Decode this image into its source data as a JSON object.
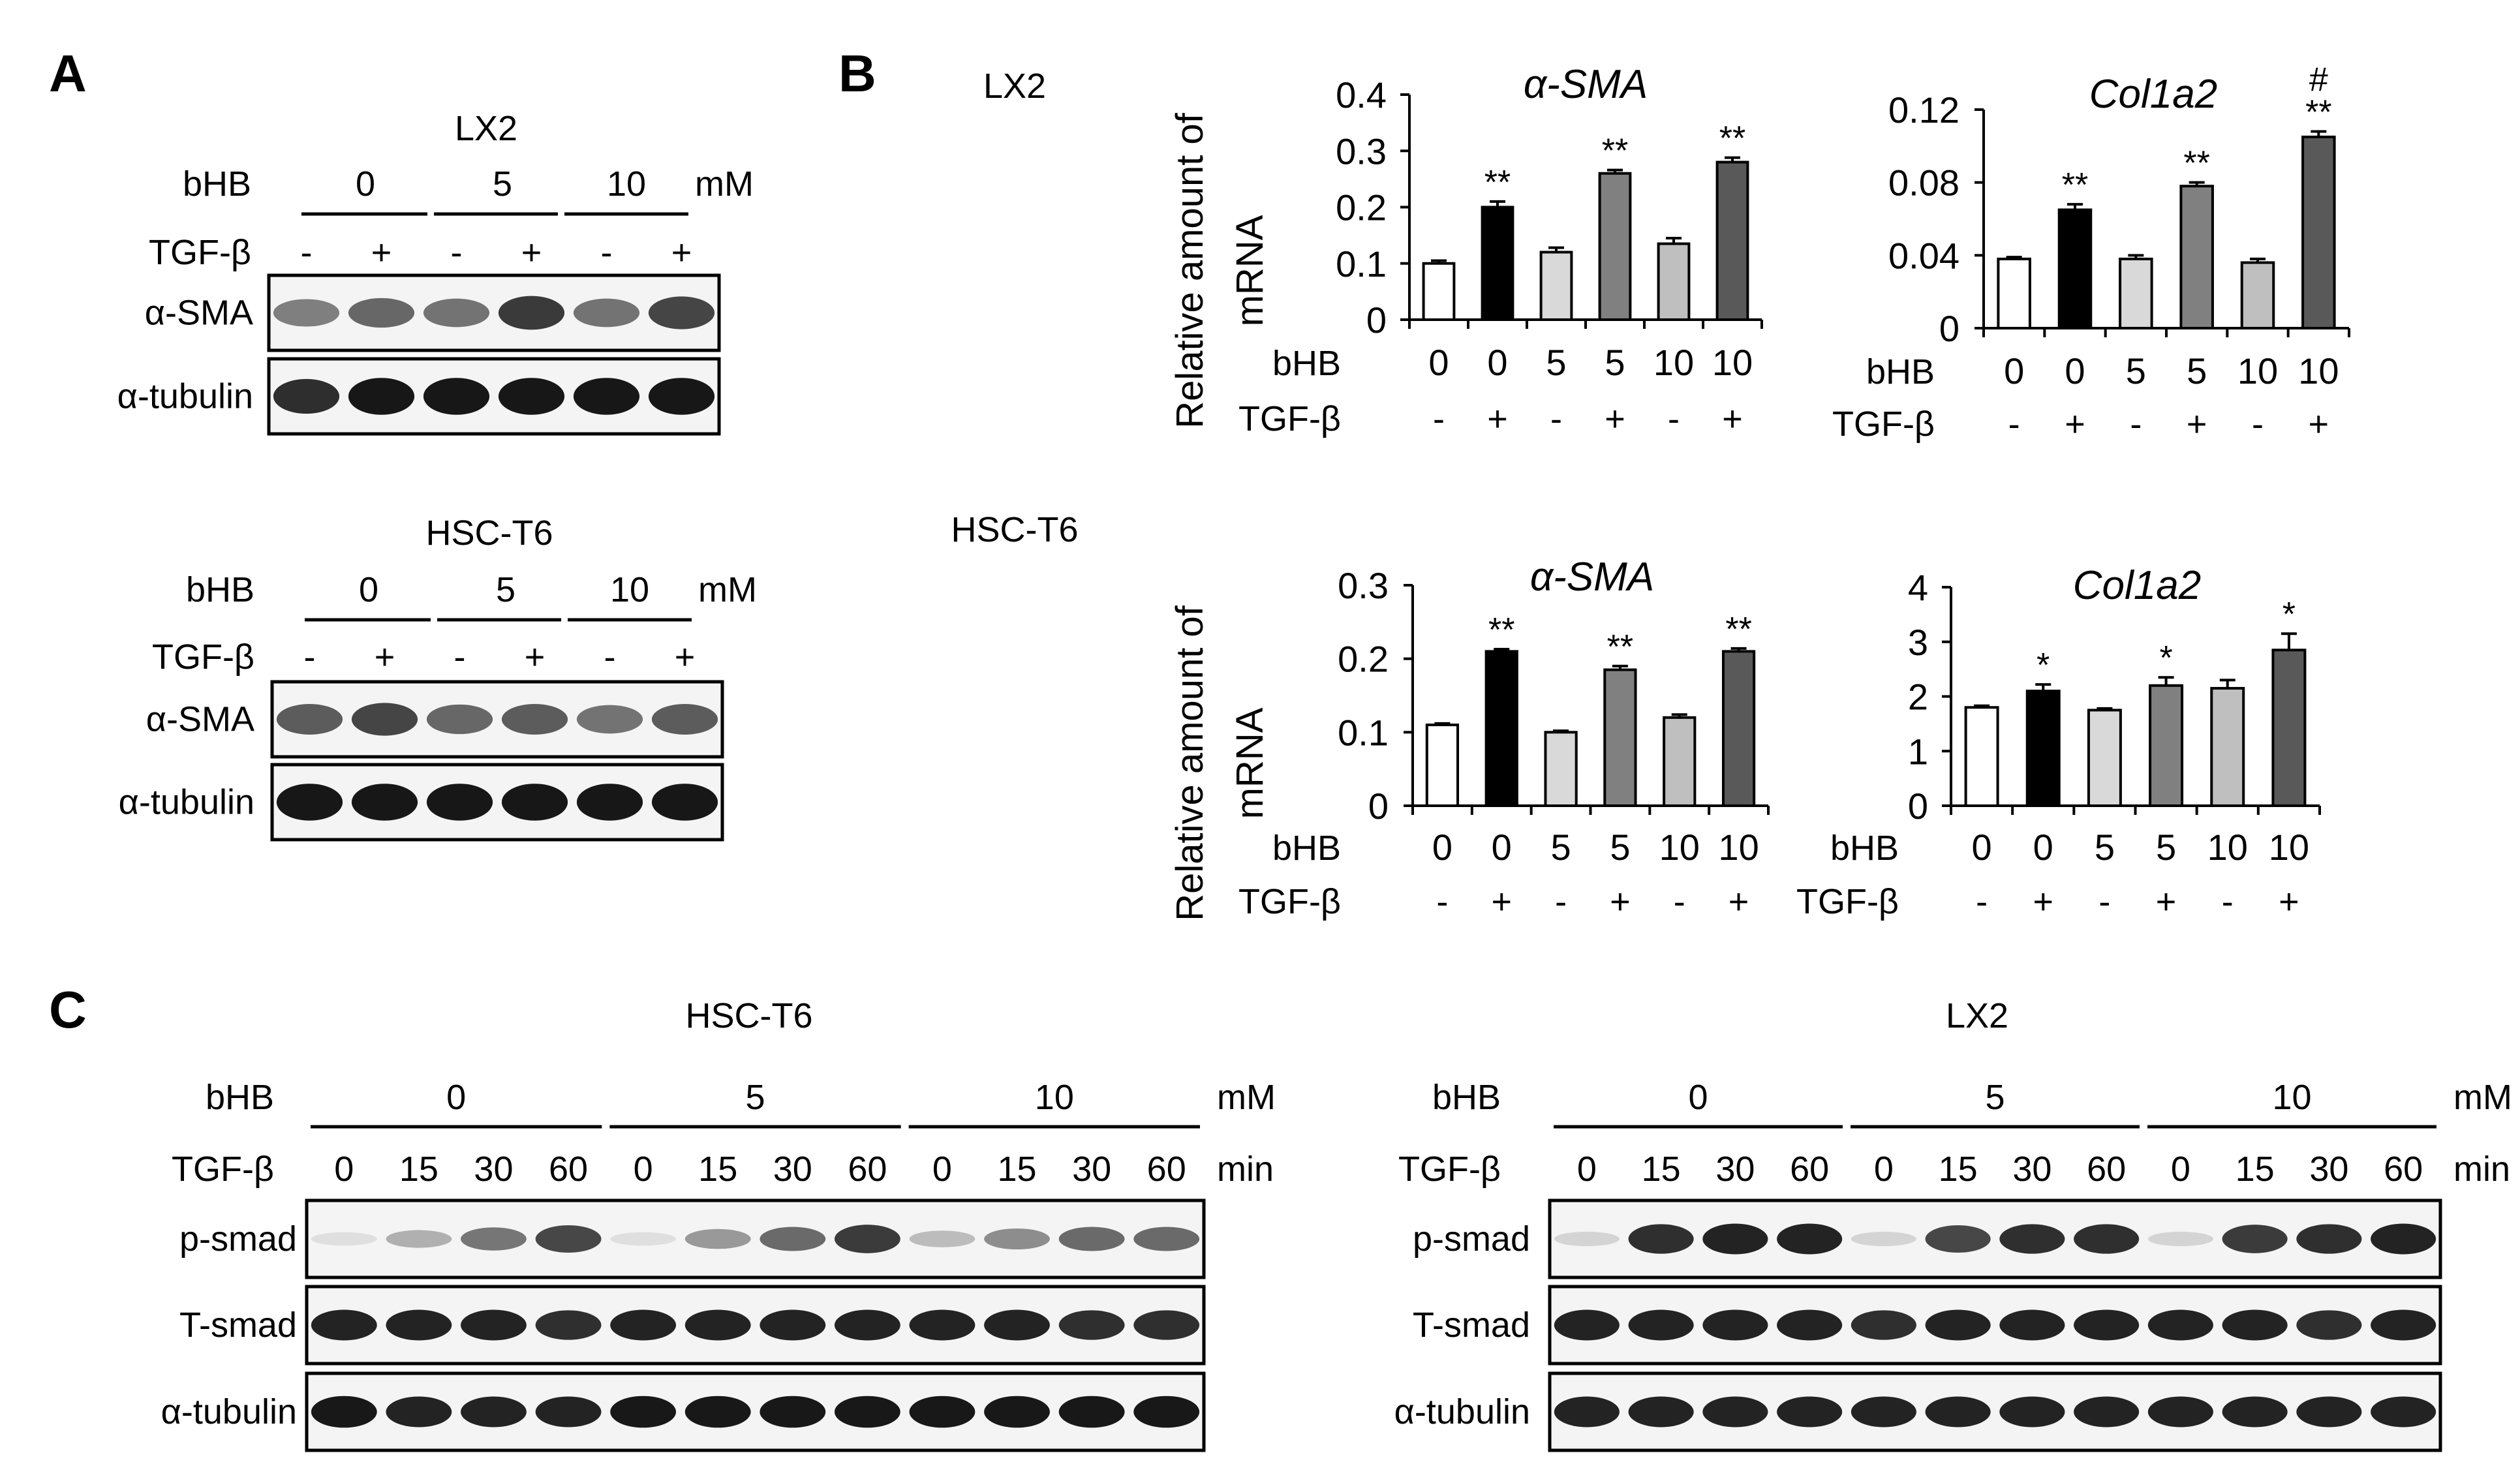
{
  "panels": {
    "A": {
      "letter": "A",
      "blots": [
        {
          "title": "LX2",
          "bhb_label": "bHB",
          "bhb_groups": [
            "0",
            "5",
            "10"
          ],
          "unit": "mM",
          "tgf_label": "TGF-β",
          "tgf_signs": [
            "-",
            "+",
            "-",
            "+",
            "-",
            "+"
          ],
          "rows": [
            {
              "label": "α-SMA",
              "lane_intensity": [
                0.45,
                0.55,
                0.5,
                0.75,
                0.5,
                0.7
              ]
            },
            {
              "label": "α-tubulin",
              "lane_intensity": [
                0.8,
                0.9,
                0.9,
                0.9,
                0.9,
                0.9
              ]
            }
          ]
        },
        {
          "title": "HSC-T6",
          "bhb_label": "bHB",
          "bhb_groups": [
            "0",
            "5",
            "10"
          ],
          "unit": "mM",
          "tgf_label": "TGF-β",
          "tgf_signs": [
            "-",
            "+",
            "-",
            "+",
            "-",
            "+"
          ],
          "rows": [
            {
              "label": "α-SMA",
              "lane_intensity": [
                0.6,
                0.7,
                0.55,
                0.6,
                0.5,
                0.6
              ]
            },
            {
              "label": "α-tubulin",
              "lane_intensity": [
                0.9,
                0.9,
                0.9,
                0.9,
                0.9,
                0.9
              ]
            }
          ]
        }
      ]
    },
    "B": {
      "letter": "B",
      "row_labels": [
        "LX2",
        "HSC-T6"
      ],
      "ylabel_line1": "Relative amount of",
      "ylabel_line2": "mRNA",
      "x_row_label": "bHB",
      "x_row2_label": "TGF-β",
      "bhb_values": [
        "0",
        "0",
        "5",
        "5",
        "10",
        "10"
      ],
      "tgf_signs": [
        "-",
        "+",
        "-",
        "+",
        "-",
        "+"
      ],
      "bar_fills": [
        "#ffffff",
        "#000000",
        "#d9d9d9",
        "#808080",
        "#bfbfbf",
        "#595959"
      ]
    },
    "C": {
      "letter": "C",
      "blots": [
        {
          "title": "HSC-T6",
          "x": 0,
          "bhb_label": "bHB",
          "bhb_groups": [
            "0",
            "5",
            "10"
          ],
          "unit": "mM",
          "tgf_label": "TGF-β",
          "times": [
            "0",
            "15",
            "30",
            "60",
            "0",
            "15",
            "30",
            "60",
            "0",
            "15",
            "30",
            "60"
          ],
          "time_unit": "min",
          "rows": [
            {
              "label": "p-smad",
              "lane_intensity": [
                0.05,
                0.25,
                0.5,
                0.7,
                0.05,
                0.35,
                0.55,
                0.75,
                0.2,
                0.4,
                0.55,
                0.55
              ]
            },
            {
              "label": "T-smad",
              "lane_intensity": [
                0.85,
                0.85,
                0.85,
                0.8,
                0.85,
                0.85,
                0.85,
                0.85,
                0.85,
                0.85,
                0.8,
                0.8
              ]
            },
            {
              "label": "α-tubulin",
              "lane_intensity": [
                0.9,
                0.85,
                0.85,
                0.85,
                0.9,
                0.9,
                0.9,
                0.9,
                0.9,
                0.9,
                0.9,
                0.9
              ]
            }
          ]
        },
        {
          "title": "LX2",
          "bhb_label": "bHB",
          "bhb_groups": [
            "0",
            "5",
            "10"
          ],
          "unit": "mM",
          "tgf_label": "TGF-β",
          "times": [
            "0",
            "15",
            "30",
            "60",
            "0",
            "15",
            "30",
            "60",
            "0",
            "15",
            "30",
            "60"
          ],
          "time_unit": "min",
          "rows": [
            {
              "label": "p-smad",
              "lane_intensity": [
                0.1,
                0.8,
                0.85,
                0.85,
                0.1,
                0.7,
                0.8,
                0.8,
                0.1,
                0.75,
                0.8,
                0.85
              ]
            },
            {
              "label": "T-smad",
              "lane_intensity": [
                0.85,
                0.85,
                0.85,
                0.85,
                0.8,
                0.85,
                0.85,
                0.85,
                0.85,
                0.85,
                0.8,
                0.85
              ]
            },
            {
              "label": "α-tubulin",
              "lane_intensity": [
                0.85,
                0.85,
                0.85,
                0.85,
                0.85,
                0.85,
                0.85,
                0.85,
                0.85,
                0.85,
                0.85,
                0.85
              ]
            }
          ]
        }
      ]
    }
  },
  "chart_data": [
    {
      "type": "bar",
      "title": "α-SMA",
      "cell_line": "LX2",
      "ylabel": "Relative amount of mRNA",
      "categories": [
        "0 -",
        "0 +",
        "5 -",
        "5 +",
        "10 -",
        "10 +"
      ],
      "values": [
        0.1,
        0.2,
        0.12,
        0.26,
        0.135,
        0.28
      ],
      "errors": [
        0.005,
        0.01,
        0.008,
        0.006,
        0.01,
        0.008
      ],
      "annotations": [
        "",
        "**",
        "",
        "**",
        "",
        "**"
      ],
      "ylim": [
        0,
        0.4
      ],
      "yticks": [
        "0",
        "0.1",
        "0.2",
        "0.3",
        "0.4"
      ]
    },
    {
      "type": "bar",
      "title": "Col1a2",
      "cell_line": "LX2",
      "ylabel": "",
      "categories": [
        "0 -",
        "0 +",
        "5 -",
        "5 +",
        "10 -",
        "10 +"
      ],
      "values": [
        0.038,
        0.065,
        0.038,
        0.078,
        0.036,
        0.105
      ],
      "errors": [
        0.001,
        0.003,
        0.002,
        0.002,
        0.002,
        0.003
      ],
      "annotations": [
        "",
        "**",
        "",
        "**",
        "",
        "#\n**"
      ],
      "ylim": [
        0,
        0.12
      ],
      "yticks": [
        "0",
        "0.04",
        "0.08",
        "0.12"
      ]
    },
    {
      "type": "bar",
      "title": "α-SMA",
      "cell_line": "HSC-T6",
      "ylabel": "Relative amount of mRNA",
      "categories": [
        "0 -",
        "0 +",
        "5 -",
        "5 +",
        "10 -",
        "10 +"
      ],
      "values": [
        0.11,
        0.21,
        0.1,
        0.185,
        0.12,
        0.21
      ],
      "errors": [
        0.002,
        0.003,
        0.002,
        0.005,
        0.004,
        0.004
      ],
      "annotations": [
        "",
        "**",
        "",
        "**",
        "",
        "**"
      ],
      "ylim": [
        0,
        0.3
      ],
      "yticks": [
        "0",
        "0.1",
        "0.2",
        "0.3"
      ]
    },
    {
      "type": "bar",
      "title": "Col1a2",
      "cell_line": "HSC-T6",
      "ylabel": "",
      "categories": [
        "0 -",
        "0 +",
        "5 -",
        "5 +",
        "10 -",
        "10 +"
      ],
      "values": [
        1.8,
        2.1,
        1.75,
        2.2,
        2.15,
        2.85
      ],
      "errors": [
        0.03,
        0.12,
        0.03,
        0.15,
        0.15,
        0.3
      ],
      "annotations": [
        "",
        "*",
        "",
        "*",
        "",
        "*"
      ],
      "ylim": [
        0,
        4
      ],
      "yticks": [
        "0",
        "1",
        "2",
        "3",
        "4"
      ]
    }
  ]
}
